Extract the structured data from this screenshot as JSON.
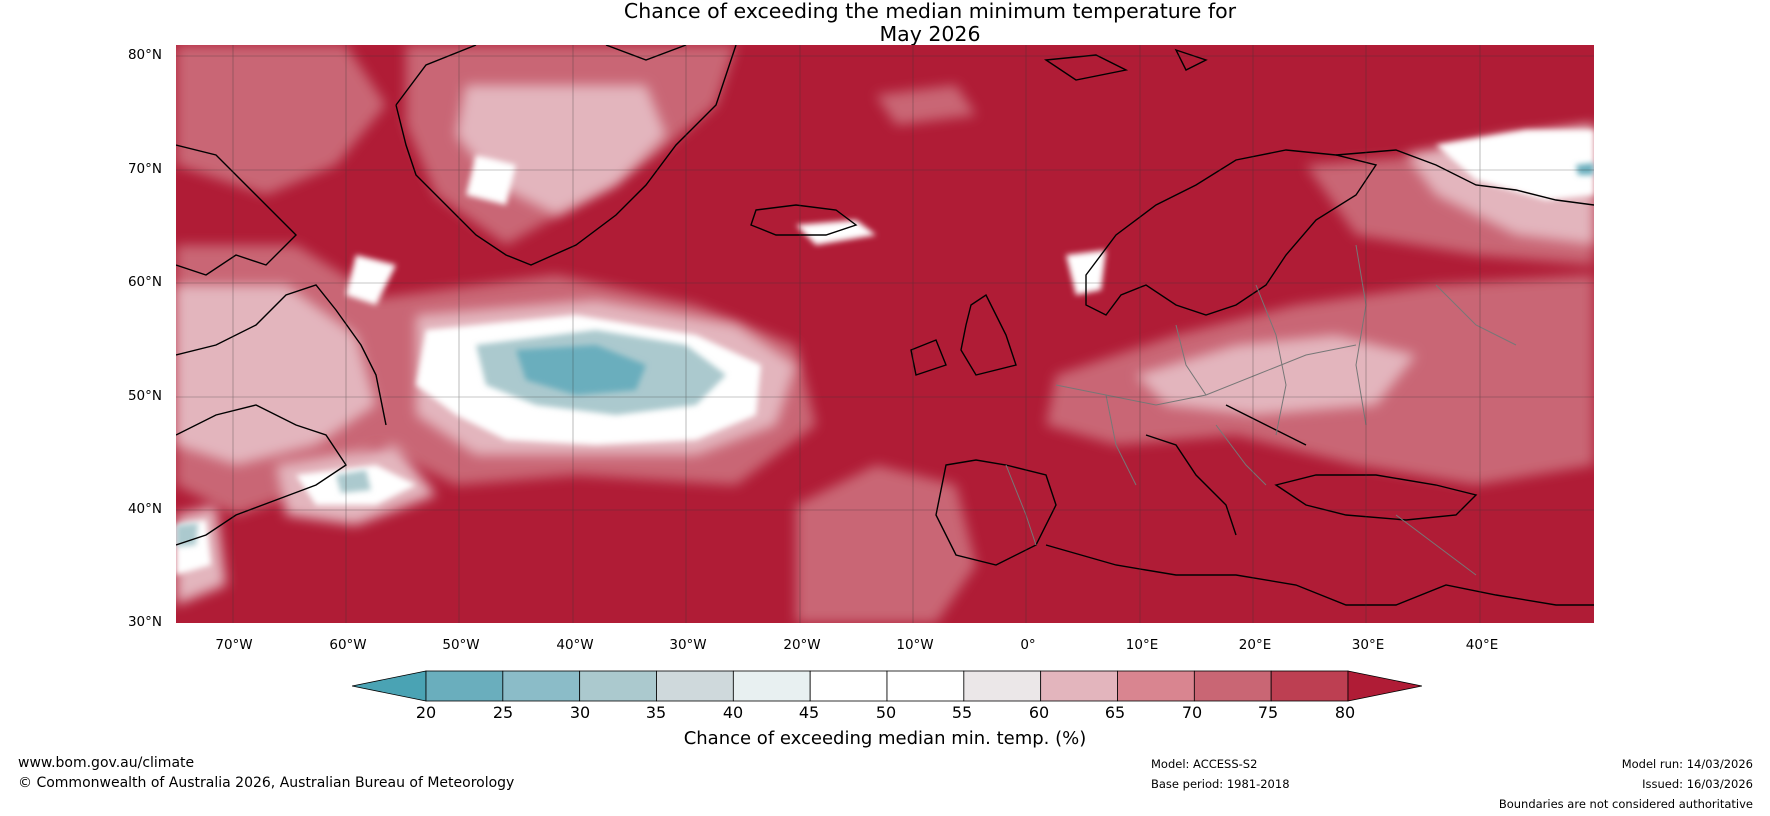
{
  "title": {
    "line1": "Chance of exceeding the median minimum temperature for",
    "line2": "May 2026"
  },
  "axes": {
    "lat_ticks": [
      "80°N",
      "70°N",
      "60°N",
      "50°N",
      "40°N",
      "30°N"
    ],
    "lon_ticks": [
      "70°W",
      "60°W",
      "50°W",
      "40°W",
      "30°W",
      "20°W",
      "10°W",
      "0°",
      "10°E",
      "20°E",
      "30°E",
      "40°E"
    ]
  },
  "colorbar": {
    "ticks": [
      "20",
      "25",
      "30",
      "35",
      "40",
      "45",
      "50",
      "55",
      "60",
      "65",
      "70",
      "75",
      "80"
    ],
    "label": "Chance of exceeding median min. temp. (%)",
    "colors": [
      "#4aa3b4",
      "#6aaebd",
      "#8bbcc8",
      "#abc9ce",
      "#cfd9dc",
      "#e8f0f1",
      "#ffffff",
      "#ffffff",
      "#ebe7e8",
      "#e3b5bd",
      "#d98590",
      "#c96674",
      "#bd3f52",
      "#b01c36"
    ]
  },
  "footer": {
    "website": "www.bom.gov.au/climate",
    "copyright": "© Commonwealth of Australia 2026, Australian Bureau of Meteorology",
    "model": "Model: ACCESS-S2",
    "base_period": "Base period: 1981-2018",
    "model_run": "Model run: 14/03/2026",
    "issued": "Issued: 16/03/2026",
    "disclaimer": "Boundaries are not considered authoritative"
  },
  "legend_colors": {
    "high": "#b01c36",
    "mid_high": "#c96674",
    "light_red": "#e3b5bd",
    "neutral": "#ffffff",
    "light_blue": "#abc9ce",
    "blue": "#6aaebd"
  }
}
